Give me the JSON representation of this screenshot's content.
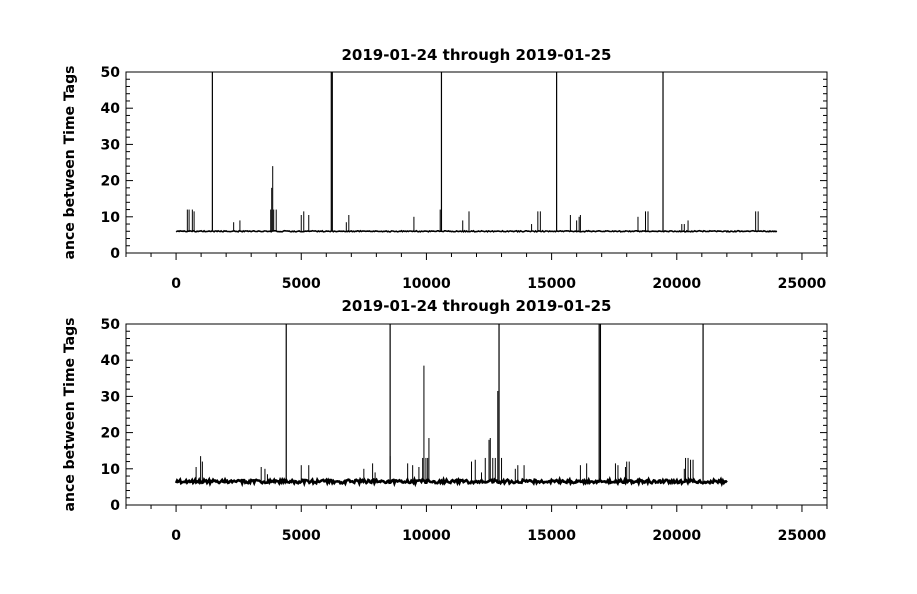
{
  "chart_data": [
    {
      "type": "line",
      "title": "2019-01-24 through 2019-01-25",
      "xlabel": "",
      "ylabel": "ance between Time Tags",
      "xlim": [
        -2000,
        26000
      ],
      "ylim": [
        0,
        50
      ],
      "xticks": [
        0,
        5000,
        10000,
        15000,
        20000,
        25000
      ],
      "xtick_labels": [
        "0",
        "5000",
        "10000",
        "15000",
        "20000",
        "25000"
      ],
      "yticks": [
        0,
        10,
        20,
        30,
        40,
        50
      ],
      "ytick_labels": [
        "0",
        "10",
        "20",
        "30",
        "40",
        "50"
      ],
      "x_range": [
        0,
        24000
      ],
      "baseline": 6,
      "spikes": [
        {
          "x": 450,
          "y": 12
        },
        {
          "x": 520,
          "y": 12
        },
        {
          "x": 650,
          "y": 12
        },
        {
          "x": 720,
          "y": 11.5
        },
        {
          "x": 1450,
          "y": 50
        },
        {
          "x": 2300,
          "y": 8.5
        },
        {
          "x": 2550,
          "y": 9
        },
        {
          "x": 3780,
          "y": 12
        },
        {
          "x": 3820,
          "y": 18
        },
        {
          "x": 3860,
          "y": 24
        },
        {
          "x": 3900,
          "y": 12
        },
        {
          "x": 4000,
          "y": 12
        },
        {
          "x": 5000,
          "y": 10.5
        },
        {
          "x": 5100,
          "y": 11.5
        },
        {
          "x": 5300,
          "y": 10.5
        },
        {
          "x": 6200,
          "y": 50
        },
        {
          "x": 6240,
          "y": 50
        },
        {
          "x": 6800,
          "y": 8.5
        },
        {
          "x": 6900,
          "y": 10.5
        },
        {
          "x": 9500,
          "y": 10
        },
        {
          "x": 10550,
          "y": 12
        },
        {
          "x": 10600,
          "y": 50
        },
        {
          "x": 11450,
          "y": 9
        },
        {
          "x": 11700,
          "y": 11.5
        },
        {
          "x": 14200,
          "y": 8
        },
        {
          "x": 14450,
          "y": 11.5
        },
        {
          "x": 14550,
          "y": 11.5
        },
        {
          "x": 15200,
          "y": 50
        },
        {
          "x": 15750,
          "y": 10.5
        },
        {
          "x": 16000,
          "y": 9
        },
        {
          "x": 16100,
          "y": 10
        },
        {
          "x": 16150,
          "y": 10.5
        },
        {
          "x": 18450,
          "y": 10
        },
        {
          "x": 18750,
          "y": 11.5
        },
        {
          "x": 18850,
          "y": 11.5
        },
        {
          "x": 19450,
          "y": 50
        },
        {
          "x": 20200,
          "y": 8
        },
        {
          "x": 20300,
          "y": 8
        },
        {
          "x": 20450,
          "y": 9
        },
        {
          "x": 23150,
          "y": 11.5
        },
        {
          "x": 23250,
          "y": 11.5
        }
      ]
    },
    {
      "type": "line",
      "title": "2019-01-24 through 2019-01-25",
      "xlabel": "",
      "ylabel": "ance between Time Tags",
      "xlim": [
        -2000,
        26000
      ],
      "ylim": [
        0,
        50
      ],
      "xticks": [
        0,
        5000,
        10000,
        15000,
        20000,
        25000
      ],
      "xtick_labels": [
        "0",
        "5000",
        "10000",
        "15000",
        "20000",
        "25000"
      ],
      "yticks": [
        0,
        10,
        20,
        30,
        40,
        50
      ],
      "ytick_labels": [
        "0",
        "10",
        "20",
        "30",
        "40",
        "50"
      ],
      "x_range": [
        0,
        22000
      ],
      "baseline": 6.5,
      "spikes": [
        {
          "x": 800,
          "y": 10.5
        },
        {
          "x": 980,
          "y": 13.5
        },
        {
          "x": 1050,
          "y": 12
        },
        {
          "x": 3400,
          "y": 10.5
        },
        {
          "x": 3550,
          "y": 10
        },
        {
          "x": 3650,
          "y": 8.5
        },
        {
          "x": 4400,
          "y": 50
        },
        {
          "x": 5000,
          "y": 11
        },
        {
          "x": 5300,
          "y": 11
        },
        {
          "x": 7500,
          "y": 10
        },
        {
          "x": 7850,
          "y": 11.5
        },
        {
          "x": 7950,
          "y": 9
        },
        {
          "x": 8550,
          "y": 13.5
        },
        {
          "x": 8550,
          "y": 50
        },
        {
          "x": 9250,
          "y": 11.5
        },
        {
          "x": 9450,
          "y": 11
        },
        {
          "x": 9700,
          "y": 10.5
        },
        {
          "x": 9850,
          "y": 13
        },
        {
          "x": 9900,
          "y": 38.5
        },
        {
          "x": 9980,
          "y": 13
        },
        {
          "x": 10050,
          "y": 13
        },
        {
          "x": 10100,
          "y": 18.5
        },
        {
          "x": 11800,
          "y": 12
        },
        {
          "x": 11950,
          "y": 12.5
        },
        {
          "x": 12200,
          "y": 9
        },
        {
          "x": 12350,
          "y": 13
        },
        {
          "x": 12500,
          "y": 18
        },
        {
          "x": 12550,
          "y": 18.5
        },
        {
          "x": 12650,
          "y": 13
        },
        {
          "x": 12750,
          "y": 13
        },
        {
          "x": 12850,
          "y": 31.5
        },
        {
          "x": 12900,
          "y": 50
        },
        {
          "x": 13000,
          "y": 13
        },
        {
          "x": 13550,
          "y": 10
        },
        {
          "x": 13650,
          "y": 11
        },
        {
          "x": 13900,
          "y": 11
        },
        {
          "x": 16150,
          "y": 11
        },
        {
          "x": 16400,
          "y": 11.5
        },
        {
          "x": 16900,
          "y": 50
        },
        {
          "x": 16950,
          "y": 50
        },
        {
          "x": 17550,
          "y": 11.5
        },
        {
          "x": 17650,
          "y": 11
        },
        {
          "x": 17950,
          "y": 10.5
        },
        {
          "x": 18000,
          "y": 12
        },
        {
          "x": 18100,
          "y": 12
        },
        {
          "x": 20300,
          "y": 10
        },
        {
          "x": 20350,
          "y": 13
        },
        {
          "x": 20450,
          "y": 13
        },
        {
          "x": 20550,
          "y": 12.5
        },
        {
          "x": 20650,
          "y": 12.5
        },
        {
          "x": 21050,
          "y": 50
        }
      ]
    }
  ]
}
